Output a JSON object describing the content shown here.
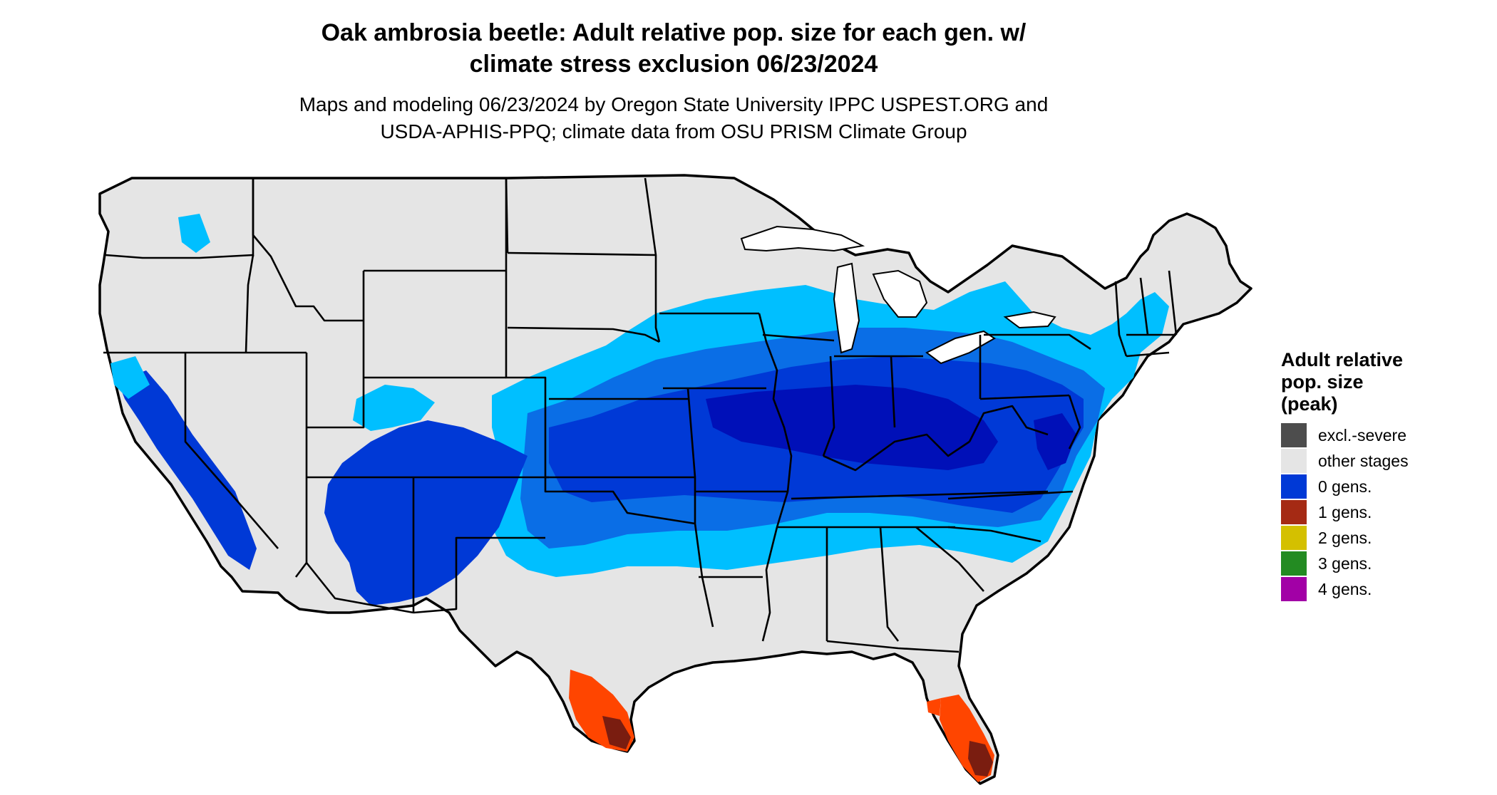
{
  "title_line1": "Oak ambrosia beetle: Adult relative pop. size for each gen. w/",
  "title_line2": "climate stress exclusion 06/23/2024",
  "subtitle_line1": "Maps and modeling 06/23/2024 by Oregon State University IPPC USPEST.ORG and",
  "subtitle_line2": "USDA-APHIS-PPQ; climate data from OSU PRISM Climate Group",
  "legend": {
    "title_line1": "Adult relative",
    "title_line2": "pop. size",
    "title_line3": "(peak)",
    "items": [
      {
        "label": "excl.-severe",
        "color": "#4d4d4d"
      },
      {
        "label": "other stages",
        "color": "#e5e5e5"
      },
      {
        "label": "0 gens.",
        "color": "#0039d6"
      },
      {
        "label": "1 gens.",
        "color": "#a52a14"
      },
      {
        "label": "2 gens.",
        "color": "#d4c000"
      },
      {
        "label": "3 gens.",
        "color": "#238b22"
      },
      {
        "label": "4 gens.",
        "color": "#a200a6"
      }
    ]
  },
  "map_colors": {
    "land": "#e5e5e5",
    "light_blue": "#00bfff",
    "mid_blue": "#0a6ee6",
    "blue": "#0039d6",
    "dark_blue": "#0010b8",
    "orange": "#ff4500",
    "red_brown": "#b32d12",
    "dark_red": "#7a1d10",
    "border": "#000000"
  }
}
